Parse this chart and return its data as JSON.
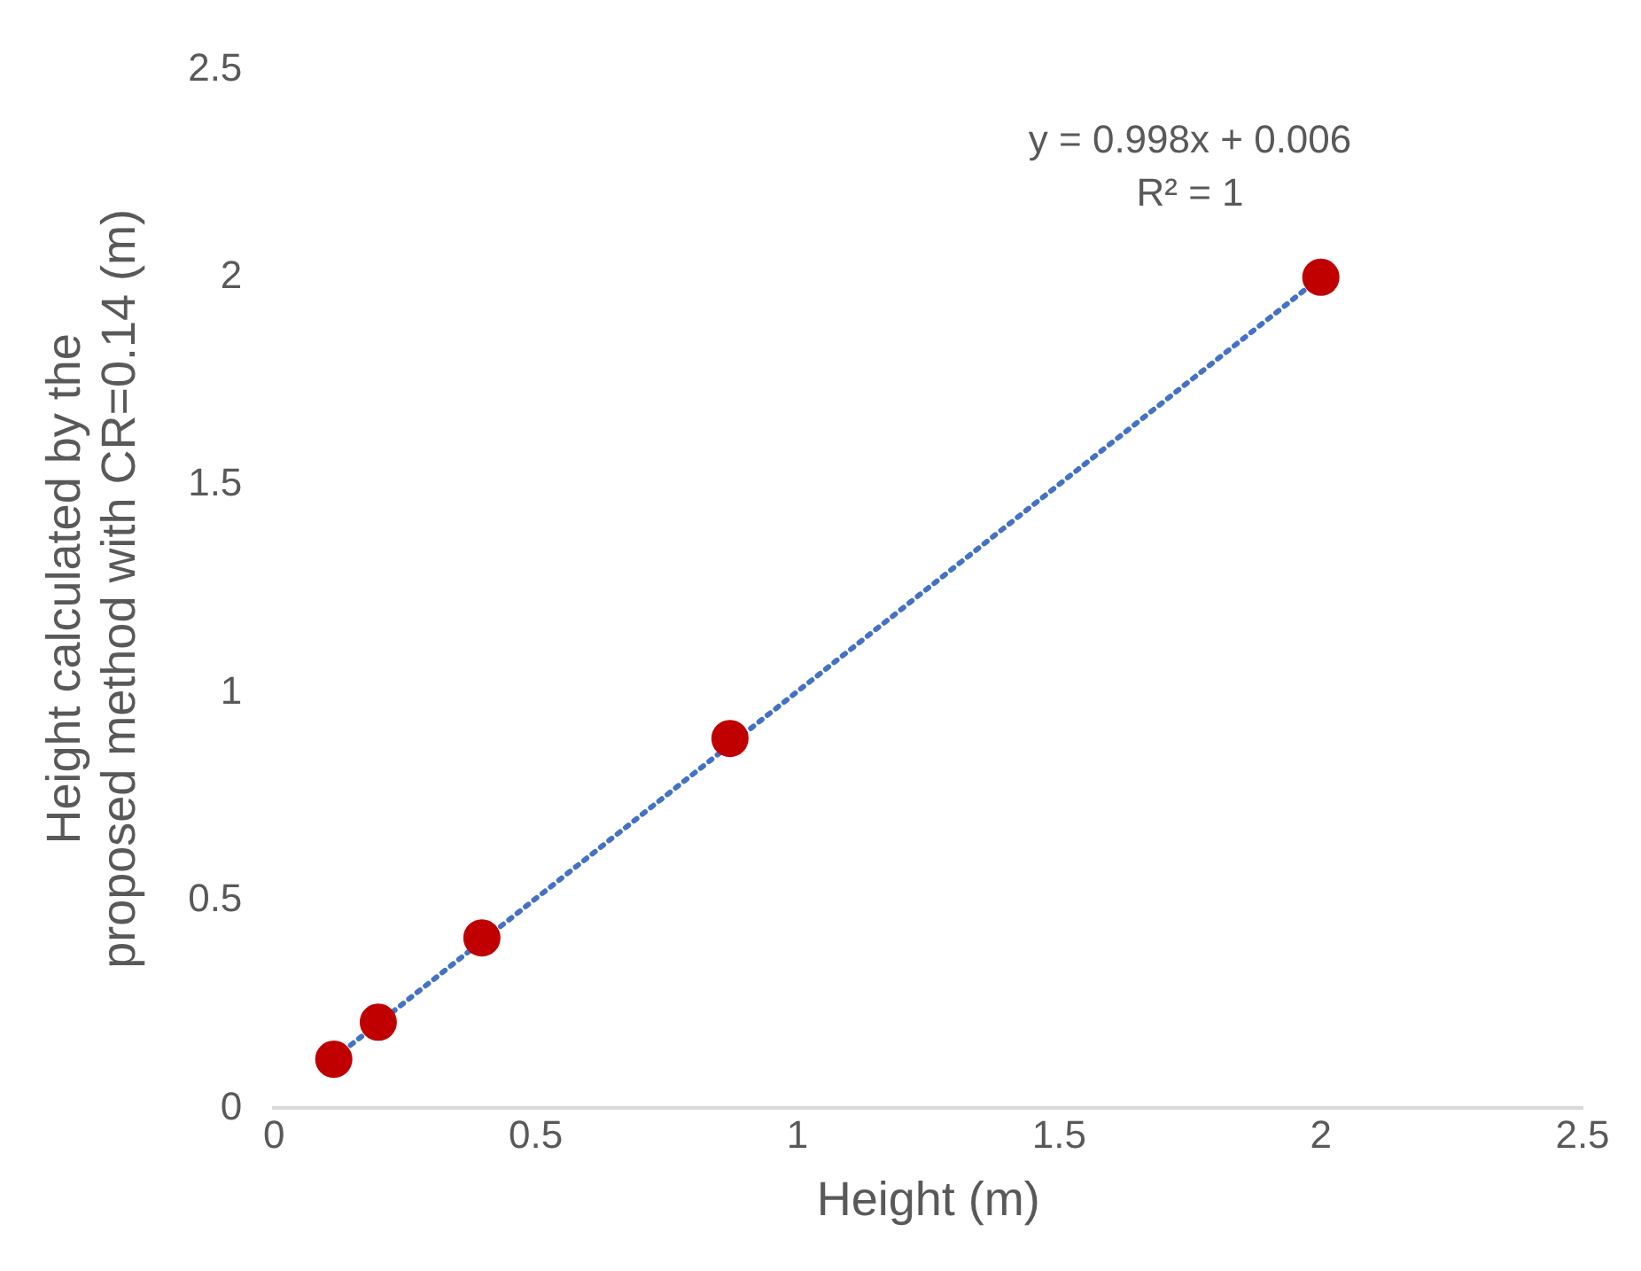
{
  "chart_data": {
    "type": "scatter",
    "xlabel": "Height (m)",
    "ylabel": "Height calculated by the proposed method with CR=0.14 (m)",
    "x": [
      0.114,
      0.199,
      0.397,
      0.871,
      2.0
    ],
    "series": [
      {
        "color": "#c00000",
        "marker": "circle",
        "values": [
          0.118,
          0.207,
          0.41,
          0.89,
          2.0
        ]
      },
      {
        "type": "line",
        "color": "#4472c4",
        "marker": "none",
        "line_style": "dotted",
        "x": [
          0.114,
          2.0
        ],
        "values": [
          0.12,
          2.0
        ]
      }
    ],
    "annotations": [
      "y = 0.998x + 0.006",
      "R² = 1"
    ],
    "xlim": [
      0,
      2.5
    ],
    "xticks": [
      0,
      0.5,
      1,
      1.5,
      2,
      2.5
    ],
    "ylim": [
      0,
      2.5
    ],
    "yticks": [
      0,
      0.5,
      1,
      1.5,
      2,
      2.5
    ],
    "grid": false,
    "legend": false
  }
}
